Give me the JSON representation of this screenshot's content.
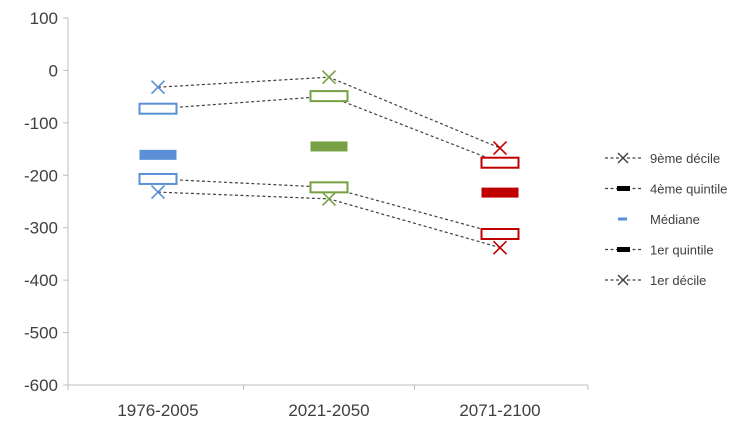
{
  "chart_data": {
    "type": "scatter",
    "title": "",
    "xlabel": "",
    "ylabel": "",
    "categories": [
      "1976-2005",
      "2021-2050",
      "2071-2100"
    ],
    "ylim": [
      -600,
      100
    ],
    "yticks": [
      100,
      0,
      -100,
      -200,
      -300,
      -400,
      -500,
      -600
    ],
    "grid": false,
    "legend_position": "right",
    "category_colors": [
      "#5b8fd6",
      "#77a045",
      "#c00000"
    ],
    "series": [
      {
        "name": "9ème décile",
        "marker": "x",
        "values": [
          -32,
          -13,
          -148
        ]
      },
      {
        "name": "4ème quintile",
        "marker": "outline-bar",
        "values": [
          -73,
          -49,
          -176
        ]
      },
      {
        "name": "Médiane",
        "marker": "filled-bar",
        "values": [
          -161,
          -145,
          -233
        ]
      },
      {
        "name": "1er quintile",
        "marker": "outline-bar",
        "values": [
          -207,
          -223,
          -312
        ]
      },
      {
        "name": "1er décile",
        "marker": "x",
        "values": [
          -232,
          -245,
          -338
        ]
      }
    ],
    "dashed_connections": [
      "9ème décile",
      "4ème quintile",
      "1er quintile",
      "1er décile"
    ]
  }
}
